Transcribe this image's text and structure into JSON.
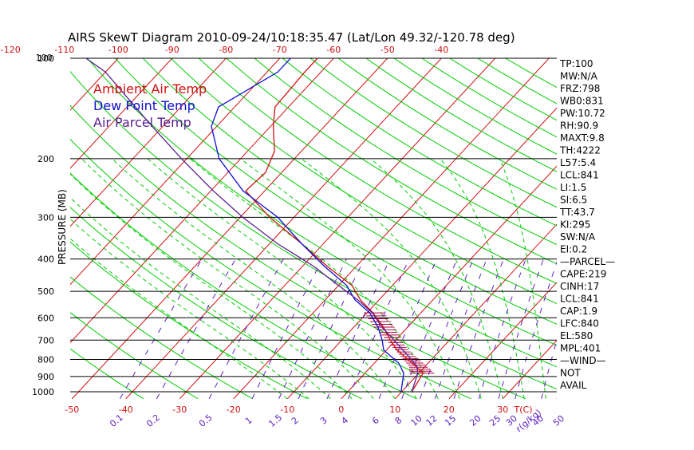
{
  "title": "AIRS SkewT Diagram 2010-09-24/10:18:35.47 (Lat/Lon 49.32/-120.78 deg)",
  "colors": {
    "temp": "#d01010",
    "dew": "#1010d0",
    "parcel": "#5a2090",
    "isotherm": "#d01010",
    "dry_adiabat": "#00cc00",
    "moist_adiabat": "#00cc00",
    "mixing_ratio": "#6020c0",
    "isobar": "#000000",
    "hatch": "#b00040"
  },
  "legend": [
    {
      "label": "Ambient Air Temp",
      "color_key": "temp"
    },
    {
      "label": "Dew Point Temp",
      "color_key": "dew"
    },
    {
      "label": "Air Parcel Temp",
      "color_key": "parcel"
    }
  ],
  "indices": [
    "TP:100",
    "MW:N/A",
    "FRZ:798",
    "WB0:831",
    "PW:10.72",
    "RH:90.9",
    "MAXT:9.8",
    "TH:4222",
    "L57:5.4",
    "LCL:841",
    "LI:1.5",
    "SI:6.5",
    "TT:43.7",
    "KI:295",
    "SW:N/A",
    "EI:0.2",
    "—PARCEL—",
    "CAPE:219",
    "CINH:17",
    "LCL:841",
    "CAP:1.9",
    "LFC:840",
    "EL:580",
    "MPL:401",
    "—WIND—",
    "NOT",
    "AVAIL"
  ],
  "chart_data": {
    "type": "line",
    "title": "AIRS SkewT Diagram 2010-09-24/10:18:35.47 (Lat/Lon 49.32/-120.78 deg)",
    "ylabel": "PRESSURE (MB)",
    "xlabel": "T(C)",
    "y_scale": "log",
    "ylim": [
      1050,
      100
    ],
    "y_ticks": [
      100,
      200,
      300,
      400,
      500,
      600,
      700,
      800,
      900,
      1000
    ],
    "top_temp_ticks": [
      -120,
      -110,
      -100,
      -90,
      -80,
      -70,
      -60,
      -50,
      -40
    ],
    "bottom_temp_ticks": [
      -50,
      -40,
      -30,
      -20,
      -10,
      0,
      10,
      20,
      30
    ],
    "bottom_temp_label": "T(C)",
    "mixing_ratio_labels": [
      "0.1",
      "0.2",
      "0.5",
      "1",
      "1.5",
      "2",
      "3",
      "4",
      "6",
      "8",
      "10",
      "12",
      "15",
      "20",
      "25",
      "30",
      "40",
      "50",
      "r(g/kg)"
    ],
    "series": [
      {
        "name": "Ambient Air Temp",
        "color_key": "temp",
        "points": [
          [
            1000,
            11.9
          ],
          [
            880,
            10.8
          ],
          [
            820,
            7.0
          ],
          [
            750,
            2.0
          ],
          [
            700,
            -1.0
          ],
          [
            640,
            -4.5
          ],
          [
            580,
            -8.9
          ],
          [
            530,
            -13.5
          ],
          [
            480,
            -17.5
          ],
          [
            420,
            -25.5
          ],
          [
            360,
            -34.0
          ],
          [
            300,
            -44.5
          ],
          [
            250,
            -53.5
          ],
          [
            220,
            -53.0
          ],
          [
            190,
            -55.0
          ],
          [
            160,
            -59.5
          ],
          [
            140,
            -62.5
          ],
          [
            110,
            -63.0
          ],
          [
            100,
            -63.0
          ]
        ]
      },
      {
        "name": "Dew Point Temp",
        "color_key": "dew",
        "points": [
          [
            1000,
            9.9
          ],
          [
            880,
            7.2
          ],
          [
            820,
            4.5
          ],
          [
            750,
            -0.5
          ],
          [
            700,
            -2.5
          ],
          [
            640,
            -5.5
          ],
          [
            580,
            -9.5
          ],
          [
            530,
            -14.5
          ],
          [
            480,
            -18.5
          ],
          [
            420,
            -26.0
          ],
          [
            360,
            -34.0
          ],
          [
            300,
            -43.0
          ],
          [
            250,
            -54.0
          ],
          [
            200,
            -64.0
          ],
          [
            160,
            -71.0
          ],
          [
            140,
            -73.0
          ],
          [
            110,
            -68.0
          ],
          [
            100,
            -68.0
          ]
        ]
      },
      {
        "name": "Air Parcel Temp",
        "color_key": "parcel",
        "points": [
          [
            1000,
            11.9
          ],
          [
            880,
            9.8
          ],
          [
            840,
            8.5
          ],
          [
            780,
            5.0
          ],
          [
            700,
            -0.3
          ],
          [
            640,
            -4.8
          ],
          [
            580,
            -9.0
          ],
          [
            530,
            -14.0
          ],
          [
            480,
            -20.0
          ],
          [
            420,
            -28.0
          ],
          [
            360,
            -38.5
          ],
          [
            300,
            -49.5
          ],
          [
            250,
            -59.5
          ],
          [
            200,
            -71.0
          ],
          [
            160,
            -82.0
          ],
          [
            130,
            -92.0
          ],
          [
            110,
            -100.0
          ],
          [
            100,
            -106.0
          ]
        ]
      }
    ]
  }
}
